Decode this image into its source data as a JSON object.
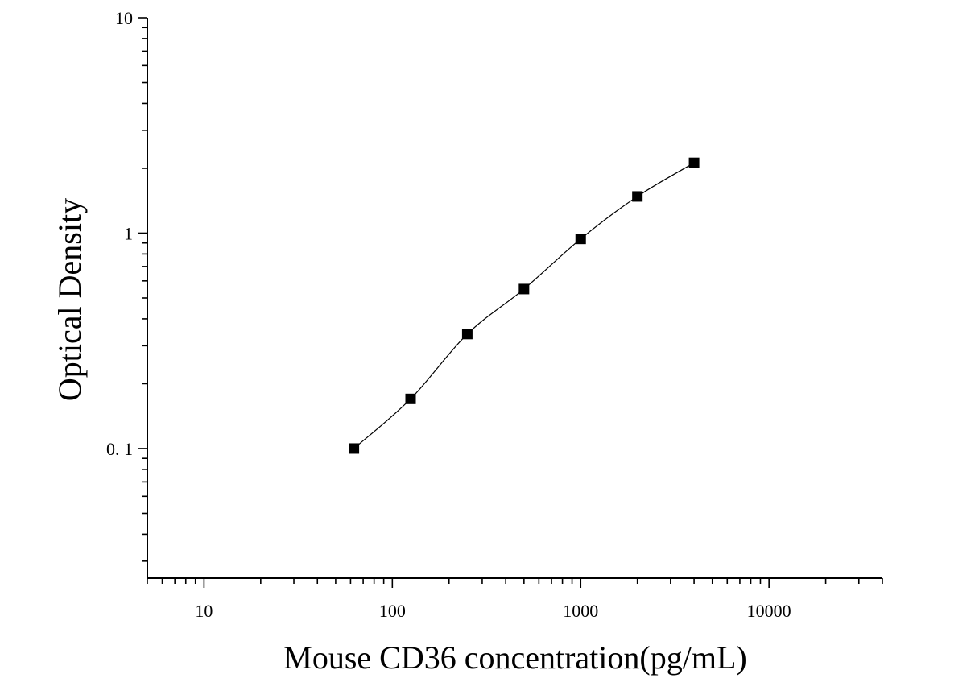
{
  "chart_data": {
    "type": "scatter",
    "title": "",
    "xlabel": "Mouse CD36 concentration(pg/mL)",
    "ylabel": "Optical Density",
    "x_scale": "log",
    "y_scale": "log",
    "xlim": [
      5,
      40000
    ],
    "ylim": [
      0.025,
      10
    ],
    "x_ticks": [
      10,
      100,
      1000,
      10000
    ],
    "x_tick_labels": [
      "10",
      "100",
      "1000",
      "10000"
    ],
    "y_ticks": [
      0.1,
      1,
      10
    ],
    "y_tick_labels": [
      "0. 1",
      "1",
      "10"
    ],
    "grid": false,
    "legend": "none",
    "series": [
      {
        "marker": "square",
        "color": "#000000",
        "fit_line": true,
        "points": [
          {
            "x": 62.5,
            "y": 0.1
          },
          {
            "x": 125,
            "y": 0.17
          },
          {
            "x": 250,
            "y": 0.34
          },
          {
            "x": 500,
            "y": 0.55
          },
          {
            "x": 1000,
            "y": 0.94
          },
          {
            "x": 2000,
            "y": 1.48
          },
          {
            "x": 4000,
            "y": 2.12
          }
        ]
      }
    ]
  }
}
